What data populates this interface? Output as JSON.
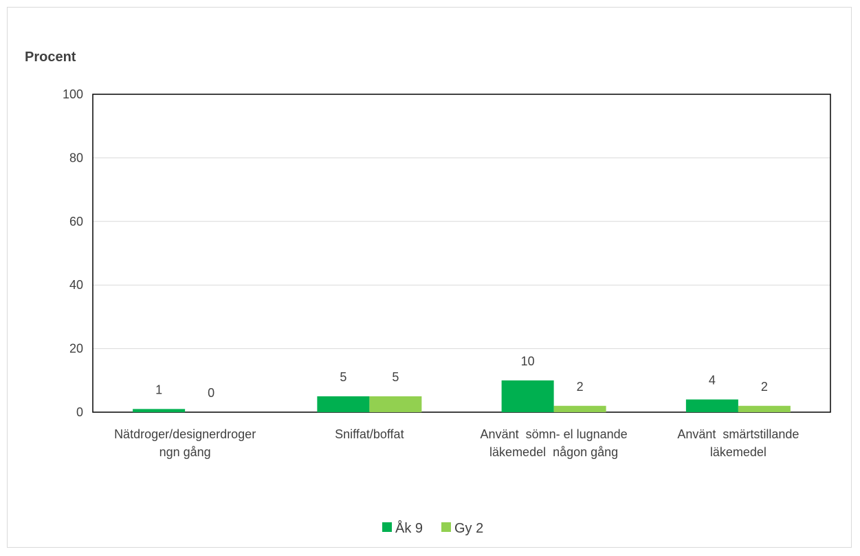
{
  "chart_data": {
    "type": "bar",
    "title": "",
    "ylabel": "Procent",
    "xlabel": "",
    "ylim": [
      0,
      100
    ],
    "yticks": [
      0,
      20,
      40,
      60,
      80,
      100
    ],
    "grid": true,
    "legend_position": "bottom",
    "categories": [
      [
        "Nätdroger/designerdroger",
        "ngn gång"
      ],
      [
        "Sniffat/boffat"
      ],
      [
        "Använt  sömn- el lugnande",
        "läkemedel  någon gång"
      ],
      [
        "Använt  smärtstillande",
        "läkemedel"
      ]
    ],
    "series": [
      {
        "name": "Åk 9",
        "color": "#00b050",
        "values": [
          1,
          5,
          10,
          4
        ]
      },
      {
        "name": "Gy 2",
        "color": "#92d050",
        "values": [
          0,
          5,
          2,
          2
        ]
      }
    ]
  }
}
